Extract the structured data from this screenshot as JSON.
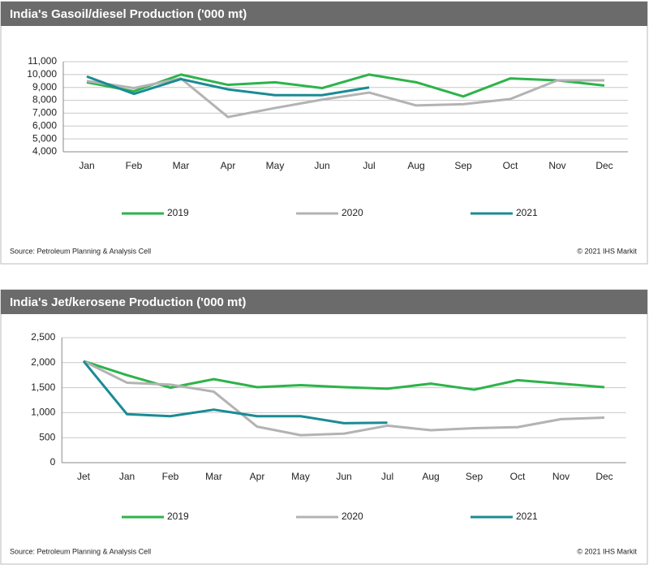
{
  "chart_data": [
    {
      "type": "line",
      "title": "India's Gasoil/diesel Production ('000 mt)",
      "categories": [
        "Jan",
        "Feb",
        "Mar",
        "Apr",
        "May",
        "Jun",
        "Jul",
        "Aug",
        "Sep",
        "Oct",
        "Nov",
        "Dec"
      ],
      "series": [
        {
          "name": "2019",
          "color": "#2db34a",
          "values": [
            9400,
            8700,
            10000,
            9200,
            9400,
            8950,
            10000,
            9400,
            8300,
            9700,
            9550,
            9150
          ]
        },
        {
          "name": "2020",
          "color": "#b3b3b3",
          "values": [
            9500,
            8950,
            9700,
            6700,
            7400,
            8050,
            8600,
            7600,
            7700,
            8100,
            9550,
            9550
          ]
        },
        {
          "name": "2021",
          "color": "#1b8b95",
          "values": [
            9850,
            8500,
            9650,
            8850,
            8400,
            8400,
            9000,
            null,
            null,
            null,
            null,
            null
          ]
        }
      ],
      "ylim": [
        4000,
        11000
      ],
      "yticks": [
        {
          "value": 4000,
          "label": "4,000"
        },
        {
          "value": 5000,
          "label": "5,000"
        },
        {
          "value": 6000,
          "label": "6,000"
        },
        {
          "value": 7000,
          "label": "7,000"
        },
        {
          "value": 8000,
          "label": "8,000"
        },
        {
          "value": 9000,
          "label": "9,000"
        },
        {
          "value": 10000,
          "label": "10,000"
        },
        {
          "value": 11000,
          "label": "11,000"
        }
      ],
      "grid": true,
      "source": "Source: Petroleum Planning & Analysis Cell",
      "credit": "© 2021 IHS Markit"
    },
    {
      "type": "line",
      "title": "India's Jet/kerosene Production ('000 mt)",
      "categories": [
        "Jet",
        "Jan",
        "Feb",
        "Mar",
        "Apr",
        "May",
        "Jun",
        "Jul",
        "Aug",
        "Sep",
        "Oct",
        "Nov",
        "Dec"
      ],
      "series": [
        {
          "name": "2019",
          "color": "#2db34a",
          "values": [
            2030,
            1750,
            1500,
            1670,
            1510,
            1550,
            1510,
            1480,
            1580,
            1460,
            1650,
            1580,
            1510
          ]
        },
        {
          "name": "2020",
          "color": "#b3b3b3",
          "values": [
            2030,
            1600,
            1560,
            1420,
            720,
            550,
            580,
            740,
            650,
            690,
            710,
            870,
            900
          ]
        },
        {
          "name": "2021",
          "color": "#1b8b95",
          "values": [
            2030,
            970,
            930,
            1060,
            930,
            930,
            790,
            800,
            null,
            null,
            null,
            null,
            null
          ]
        }
      ],
      "ylim": [
        0,
        2500
      ],
      "yticks": [
        0,
        500,
        {
          "value": 1000,
          "label": "1,000"
        },
        {
          "value": 1500,
          "label": "1,500"
        },
        {
          "value": 2000,
          "label": "2,000"
        },
        {
          "value": 2500,
          "label": "2,500"
        }
      ],
      "grid": true,
      "source": "Source: Petroleum Planning & Analysis Cell",
      "credit": "© 2021 IHS Markit"
    }
  ]
}
